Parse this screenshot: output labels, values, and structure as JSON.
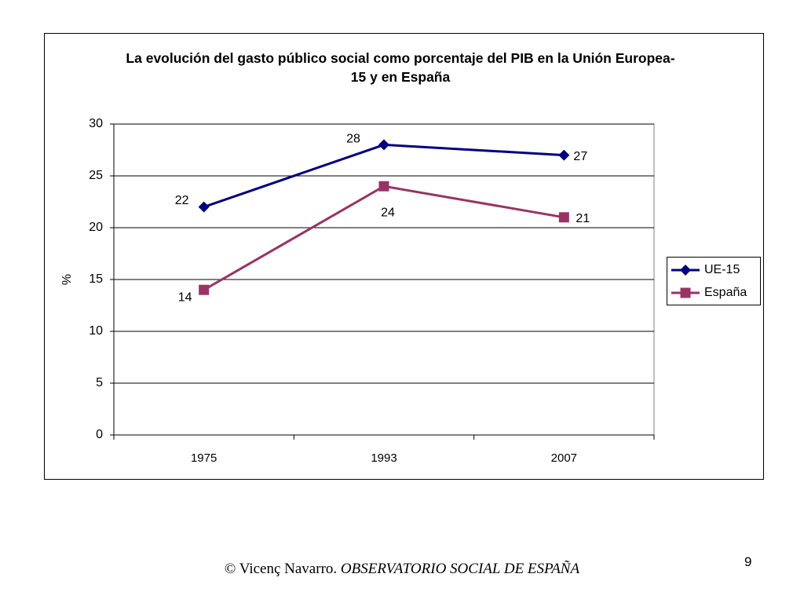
{
  "chart_data": {
    "type": "line",
    "title": "La evolución del gasto público social como porcentaje del PIB en la Unión Europea-15 y en España",
    "y_label": "%",
    "categories": [
      "1975",
      "1993",
      "2007"
    ],
    "series": [
      {
        "name": "UE-15",
        "color": "#000080",
        "marker": "diamond",
        "values": [
          22,
          28,
          27
        ]
      },
      {
        "name": "España",
        "color": "#993366",
        "marker": "square",
        "values": [
          14,
          24,
          21
        ]
      }
    ],
    "ylim": [
      0,
      30
    ],
    "yticks": [
      0,
      5,
      10,
      15,
      20,
      25,
      30
    ],
    "grid": true,
    "legend": "right"
  },
  "footer": {
    "author": "© Vicenç Navarro.",
    "source": "OBSERVATORIO SOCIAL DE ESPAÑA"
  },
  "page_number": 9
}
